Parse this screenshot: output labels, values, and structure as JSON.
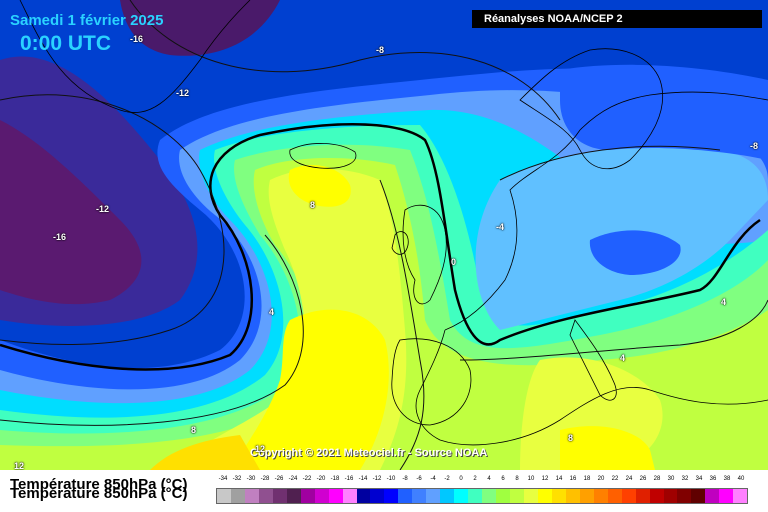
{
  "header": {
    "date": "Samedi 1 février 2025",
    "time": "0:00 UTC",
    "source": "Réanalyses NOAA/NCEP 2"
  },
  "copyright": "Copyright © 2021 Meteociel.fr - Source NOAA",
  "legend": {
    "title": "Température 850hPa (°C)",
    "ticks": [
      "-34",
      "-32",
      "-30",
      "-28",
      "-26",
      "-24",
      "-22",
      "-20",
      "-18",
      "-16",
      "-14",
      "-12",
      "-10",
      "-8",
      "-6",
      "-4",
      "-2",
      "0",
      "2",
      "4",
      "6",
      "8",
      "10",
      "12",
      "14",
      "16",
      "18",
      "20",
      "22",
      "24",
      "26",
      "28",
      "30",
      "32",
      "34",
      "36",
      "38",
      "40"
    ],
    "colors": [
      "#c8c8c8",
      "#a0a0a0",
      "#c080c0",
      "#905090",
      "#703070",
      "#502050",
      "#a000a0",
      "#d000d0",
      "#ff00ff",
      "#ff80ff",
      "#0000a0",
      "#0000d0",
      "#0000ff",
      "#2060ff",
      "#4080ff",
      "#60a0ff",
      "#00c8ff",
      "#00ffff",
      "#40ffc0",
      "#80ff80",
      "#a0ff40",
      "#c0ff40",
      "#e8ff40",
      "#ffff00",
      "#ffe000",
      "#ffc000",
      "#ffa000",
      "#ff8000",
      "#ff6000",
      "#ff4000",
      "#e02000",
      "#c00000",
      "#a00000",
      "#800000",
      "#600000",
      "#c000c0",
      "#ff00ff",
      "#ff80ff"
    ]
  },
  "contour_labels": [
    {
      "text": "-16"
    },
    {
      "text": "-12"
    },
    {
      "text": "-8"
    },
    {
      "text": "-12"
    },
    {
      "text": "-16"
    },
    {
      "text": "-8"
    },
    {
      "text": "-4"
    },
    {
      "text": "0"
    },
    {
      "text": "8"
    },
    {
      "text": "4"
    },
    {
      "text": "4"
    },
    {
      "text": "4"
    },
    {
      "text": "8"
    },
    {
      "text": "8"
    },
    {
      "text": "12"
    },
    {
      "text": "12"
    }
  ]
}
